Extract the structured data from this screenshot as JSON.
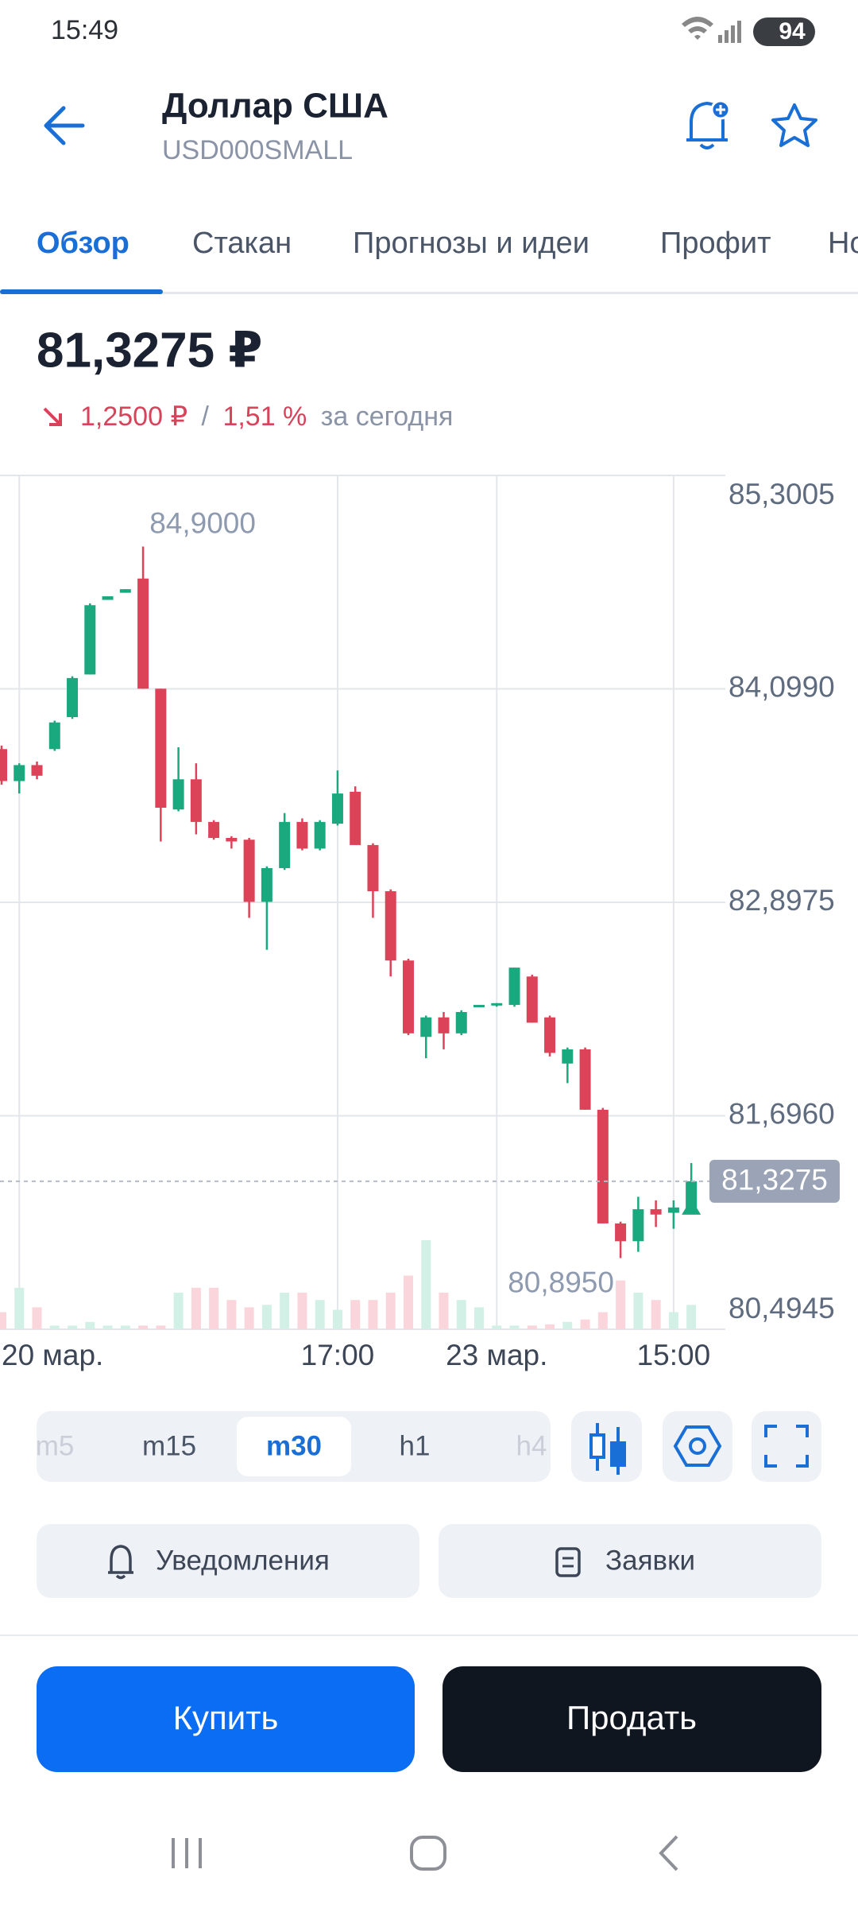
{
  "status_bar": {
    "time": "15:49",
    "battery": 94
  },
  "header": {
    "title": "Доллар США",
    "ticker": "USD000SMALL"
  },
  "tabs": [
    "Обзор",
    "Стакан",
    "Прогнозы и идеи",
    "Профит",
    "Но"
  ],
  "quote": {
    "price": "81,3275 ₽",
    "change": "1,2500 ₽",
    "separator": "/",
    "change_percent": "1,51 %",
    "period": "за сегодня"
  },
  "chart_data": {
    "type": "candlestick",
    "categories": [
      null,
      "20 мар.",
      null,
      null,
      null,
      null,
      null,
      null,
      null,
      null,
      null,
      null,
      null,
      null,
      null,
      null,
      null,
      null,
      null,
      "17:00",
      null,
      null,
      null,
      null,
      null,
      null,
      null,
      null,
      "23 мар.",
      null,
      null,
      null,
      null,
      null,
      null,
      null,
      null,
      null,
      "15:00",
      null
    ],
    "open": [
      83.76,
      83.58,
      83.67,
      83.76,
      83.94,
      84.18,
      84.6,
      84.64,
      84.72,
      84.1,
      83.42,
      83.59,
      83.35,
      83.26,
      83.25,
      82.9,
      83.09,
      83.35,
      83.2,
      83.34,
      83.52,
      83.22,
      82.96,
      82.57,
      82.14,
      82.25,
      82.16,
      82.31,
      82.32,
      82.32,
      82.48,
      82.25,
      81.99,
      82.07,
      81.73,
      81.09,
      80.99,
      81.17,
      81.15,
      81.17
    ],
    "high": [
      83.78,
      83.68,
      83.69,
      83.92,
      84.17,
      84.58,
      84.62,
      84.66,
      84.9,
      84.1,
      83.77,
      83.68,
      83.36,
      83.27,
      83.26,
      83.1,
      83.4,
      83.37,
      83.36,
      83.64,
      83.55,
      83.23,
      82.97,
      82.58,
      82.26,
      82.28,
      82.29,
      82.32,
      82.33,
      82.53,
      82.49,
      82.26,
      82.08,
      82.08,
      81.74,
      81.1,
      81.24,
      81.22,
      81.22,
      81.43
    ],
    "low": [
      83.56,
      83.51,
      83.59,
      83.75,
      83.93,
      84.18,
      84.6,
      84.64,
      84.1,
      83.24,
      83.41,
      83.28,
      83.25,
      83.2,
      82.81,
      82.63,
      83.08,
      83.19,
      83.19,
      83.33,
      83.22,
      82.81,
      82.48,
      82.15,
      82.02,
      82.07,
      82.15,
      82.31,
      82.31,
      82.31,
      82.22,
      82.03,
      81.88,
      81.73,
      81.09,
      80.895,
      80.93,
      81.07,
      81.06,
      81.15
    ],
    "close": [
      83.58,
      83.67,
      83.61,
      83.91,
      84.16,
      84.57,
      84.62,
      84.66,
      84.1,
      83.43,
      83.59,
      83.35,
      83.26,
      83.24,
      82.9,
      83.09,
      83.35,
      83.2,
      83.35,
      83.51,
      83.22,
      82.96,
      82.57,
      82.16,
      82.25,
      82.16,
      82.28,
      82.32,
      82.33,
      82.53,
      82.22,
      82.05,
      82.07,
      81.73,
      81.09,
      80.99,
      81.17,
      81.14,
      81.18,
      81.3275
    ],
    "volume": [
      14,
      34,
      18,
      3,
      3,
      6,
      3,
      3,
      3,
      3,
      30,
      34,
      34,
      24,
      18,
      20,
      30,
      30,
      24,
      16,
      24,
      24,
      30,
      44,
      73,
      30,
      24,
      18,
      3,
      3,
      3,
      4,
      6,
      8,
      14,
      40,
      30,
      24,
      14,
      20
    ],
    "up_color": "#1aa87f",
    "down_color": "#dd4358",
    "volume_up_color": "#d3f0e6",
    "volume_down_color": "#fad6dc",
    "ylim": [
      80.4945,
      85.3005
    ],
    "yticks": [
      {
        "value": 85.3005,
        "label": "85,3005"
      },
      {
        "value": 84.099,
        "label": "84,0990"
      },
      {
        "value": 82.8975,
        "label": "82,8975"
      },
      {
        "value": 81.696,
        "label": "81,6960"
      },
      {
        "value": 80.4945,
        "label": "80,4945"
      }
    ],
    "grid": true,
    "high_label": {
      "value": 84.9,
      "label": "84,9000"
    },
    "low_label": {
      "value": 80.895,
      "label": "80,8950"
    },
    "last_price": {
      "value": 81.3275,
      "label": "81,3275"
    }
  },
  "intervals": {
    "options": [
      "m5",
      "m15",
      "m30",
      "h1",
      "h4"
    ],
    "selected": 2
  },
  "actions": [
    "Уведомления",
    "Заявки"
  ],
  "trade_buttons": [
    "Купить",
    "Продать"
  ]
}
